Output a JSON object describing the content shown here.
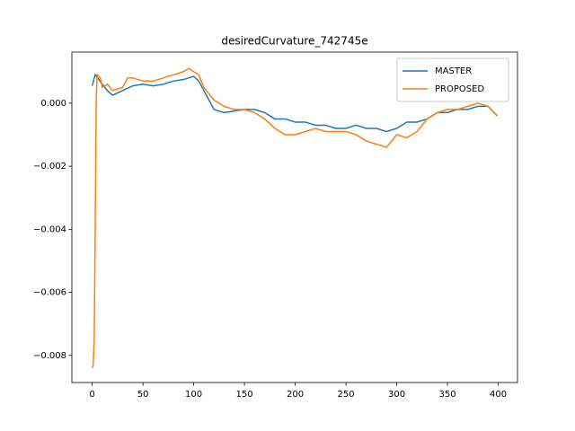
{
  "chart_data": {
    "type": "line",
    "title": "desiredCurvature_742745e",
    "xlim": [
      -20,
      419
    ],
    "ylim": [
      -0.00886,
      0.00162
    ],
    "xticks": [
      0,
      50,
      100,
      150,
      200,
      250,
      300,
      350,
      400
    ],
    "yticks": [
      {
        "value": 0,
        "label": "0.000"
      },
      {
        "value": -0.002,
        "label": "−0.002"
      },
      {
        "value": -0.004,
        "label": "−0.004"
      },
      {
        "value": -0.006,
        "label": "−0.006"
      },
      {
        "value": -0.008,
        "label": "−0.008"
      }
    ],
    "legend": "upper right",
    "series": [
      {
        "name": "MASTER",
        "color": "#1f77b4",
        "x": [
          0,
          3,
          10,
          15,
          20,
          30,
          40,
          50,
          60,
          70,
          80,
          90,
          100,
          105,
          110,
          120,
          130,
          140,
          150,
          160,
          170,
          180,
          190,
          200,
          210,
          220,
          230,
          240,
          250,
          260,
          270,
          280,
          290,
          300,
          310,
          320,
          330,
          340,
          350,
          360,
          370,
          380,
          390,
          399
        ],
        "values": [
          0.00055,
          0.0009,
          0.0006,
          0.0004,
          0.00025,
          0.0004,
          0.00055,
          0.0006,
          0.00055,
          0.0006,
          0.0007,
          0.00075,
          0.00085,
          0.0007,
          0.0004,
          -0.0002,
          -0.0003,
          -0.00025,
          -0.0002,
          -0.0002,
          -0.0003,
          -0.0005,
          -0.0005,
          -0.0006,
          -0.0006,
          -0.0007,
          -0.0007,
          -0.0008,
          -0.0008,
          -0.0007,
          -0.0008,
          -0.0008,
          -0.0009,
          -0.0008,
          -0.0006,
          -0.0006,
          -0.0005,
          -0.0003,
          -0.0003,
          -0.0002,
          -0.0002,
          -0.0001,
          -0.0001,
          -0.0004
        ]
      },
      {
        "name": "PROPOSED",
        "color": "#ff7f0e",
        "x": [
          0,
          1,
          2,
          3,
          4,
          5,
          8,
          10,
          15,
          20,
          30,
          35,
          40,
          50,
          60,
          70,
          80,
          90,
          95,
          100,
          105,
          110,
          120,
          130,
          140,
          150,
          160,
          170,
          180,
          190,
          200,
          210,
          220,
          230,
          240,
          250,
          260,
          270,
          280,
          290,
          295,
          300,
          310,
          320,
          330,
          340,
          350,
          360,
          370,
          380,
          390,
          399
        ],
        "values": [
          -0.0084,
          -0.0083,
          -0.0075,
          -0.004,
          0.0002,
          0.0009,
          0.0008,
          0.0005,
          0.0006,
          0.0004,
          0.0005,
          0.0008,
          0.0008,
          0.0007,
          0.0007,
          0.0008,
          0.0009,
          0.001,
          0.0011,
          0.001,
          0.0009,
          0.0005,
          0.0001,
          -0.0001,
          -0.0002,
          -0.0002,
          -0.0003,
          -0.0005,
          -0.0008,
          -0.001,
          -0.001,
          -0.0009,
          -0.0008,
          -0.0009,
          -0.0009,
          -0.0009,
          -0.001,
          -0.0012,
          -0.0013,
          -0.0014,
          -0.0012,
          -0.001,
          -0.0011,
          -0.0009,
          -0.0005,
          -0.0003,
          -0.0002,
          -0.0002,
          -0.0001,
          0.0,
          -0.0001,
          -0.0004
        ]
      }
    ]
  }
}
